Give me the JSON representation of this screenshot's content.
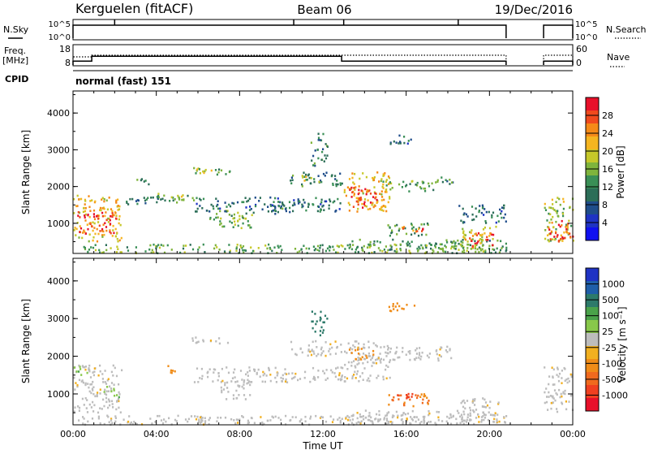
{
  "header": {
    "station": "Kerguelen (fitACF)",
    "beam": "Beam 06",
    "date": "19/Dec/2016"
  },
  "top_panels": {
    "nsky_label": "N.Sky",
    "nsearch_label": "N.Search",
    "freq_label_line1": "Freq.",
    "freq_label_line2": "[MHz]",
    "nave_label": "Nave",
    "cpid_label": "CPID",
    "mode_text": "normal (fast) 151",
    "noise_ticks": [
      "10^5",
      "10^0"
    ],
    "freq_ticks": [
      "18",
      "8"
    ],
    "nave_ticks": [
      "60",
      "0"
    ]
  },
  "colorbars": {
    "power": {
      "label": "Power [dB]",
      "ticks": [
        "28",
        "24",
        "20",
        "16",
        "12",
        "8",
        "4"
      ],
      "colors": [
        "#e8102a",
        "#f04a1e",
        "#f58a18",
        "#f5b520",
        "#c6c82a",
        "#7fb43c",
        "#3a8f56",
        "#2c6e58",
        "#1f4d8a",
        "#1f33c4",
        "#1010f0"
      ]
    },
    "velocity": {
      "label": "Velocity [m s⁻¹]",
      "ticks": [
        "1000",
        "500",
        "100",
        "25",
        "-25",
        "-100",
        "-500",
        "-1000"
      ],
      "colors": [
        "#1f33c4",
        "#1f5ea8",
        "#2d7a6a",
        "#4aa24a",
        "#88c84a",
        "#bdbdbd",
        "#f2b020",
        "#f08c18",
        "#f06a1e",
        "#f04020",
        "#e8102a"
      ]
    }
  },
  "chart_data": {
    "type": "heatmap",
    "xlabel": "Time UT",
    "x_ticks": [
      "00:00",
      "04:00",
      "08:00",
      "12:00",
      "16:00",
      "20:00",
      "00:00"
    ],
    "xlim_hours": [
      0,
      24
    ],
    "ylabel": "Slant Range [km]",
    "y_ticks": [
      "1000",
      "2000",
      "3000",
      "4000"
    ],
    "ylim_km": [
      180,
      4600
    ],
    "data_gap_hours": [
      20.8,
      22.6
    ],
    "noise": {
      "segments": [
        [
          0,
          20.8
        ],
        [
          22.6,
          24
        ]
      ],
      "spikes_hours": [
        2.0,
        10.6,
        13.0,
        18.5
      ]
    },
    "frequency_mhz": [
      {
        "start": 0,
        "end": 0.9,
        "value": 10
      },
      {
        "start": 0.9,
        "end": 12.9,
        "value": 12.5
      },
      {
        "start": 12.9,
        "end": 20.8,
        "value": 10
      },
      {
        "start": 22.6,
        "end": 24,
        "value": 10
      }
    ],
    "nave": [
      {
        "start": 0,
        "end": 0.9,
        "value": 25
      },
      {
        "start": 0.9,
        "end": 20.8,
        "value": 30
      },
      {
        "start": 22.6,
        "end": 24,
        "value": 30
      }
    ],
    "power_patches": [
      {
        "t0": 0,
        "t1": 2.3,
        "r0": 500,
        "r1": 1750,
        "p": 20
      },
      {
        "t0": 0.2,
        "t1": 2.1,
        "r0": 700,
        "r1": 1300,
        "p": 27
      },
      {
        "t0": 2.3,
        "t1": 4.3,
        "r0": 1500,
        "r1": 1750,
        "p": 10
      },
      {
        "t0": 2.8,
        "t1": 3.6,
        "r0": 2050,
        "r1": 2200,
        "p": 12
      },
      {
        "t0": 3.5,
        "t1": 4.3,
        "r0": 1600,
        "r1": 1800,
        "p": 14
      },
      {
        "t0": 4.3,
        "t1": 5.8,
        "r0": 1550,
        "r1": 1780,
        "p": 14
      },
      {
        "t0": 4.6,
        "t1": 5.3,
        "r0": 1620,
        "r1": 1730,
        "p": 18
      },
      {
        "t0": 5.7,
        "t1": 7.5,
        "r0": 2300,
        "r1": 2500,
        "p": 14
      },
      {
        "t0": 5.9,
        "t1": 6.7,
        "r0": 2350,
        "r1": 2470,
        "p": 18
      },
      {
        "t0": 6.5,
        "t1": 7.0,
        "r0": 1100,
        "r1": 1300,
        "p": 14
      },
      {
        "t0": 7.0,
        "t1": 8.6,
        "r0": 850,
        "r1": 1350,
        "p": 14
      },
      {
        "t0": 7.6,
        "t1": 8.3,
        "r0": 950,
        "r1": 1200,
        "p": 20
      },
      {
        "t0": 5.8,
        "t1": 12.9,
        "r0": 1300,
        "r1": 1700,
        "p": 9
      },
      {
        "t0": 8.6,
        "t1": 10.4,
        "r0": 1250,
        "r1": 1500,
        "p": 10
      },
      {
        "t0": 10.4,
        "t1": 12.9,
        "r0": 2000,
        "r1": 2400,
        "p": 10
      },
      {
        "t0": 10.9,
        "t1": 11.8,
        "r0": 2100,
        "r1": 2300,
        "p": 16
      },
      {
        "t0": 11.4,
        "t1": 12.2,
        "r0": 2550,
        "r1": 3200,
        "p": 11
      },
      {
        "t0": 11.7,
        "t1": 12.0,
        "r0": 3200,
        "r1": 3500,
        "p": 10
      },
      {
        "t0": 13.0,
        "t1": 15.2,
        "r0": 1300,
        "r1": 2400,
        "p": 20
      },
      {
        "t0": 13.2,
        "t1": 14.6,
        "r0": 1400,
        "r1": 2000,
        "p": 27
      },
      {
        "t0": 14.8,
        "t1": 17.5,
        "r0": 1850,
        "r1": 2150,
        "p": 14
      },
      {
        "t0": 17.0,
        "t1": 18.3,
        "r0": 2050,
        "r1": 2250,
        "p": 11
      },
      {
        "t0": 15.0,
        "t1": 16.4,
        "r0": 3150,
        "r1": 3400,
        "p": 9
      },
      {
        "t0": 15.0,
        "t1": 17.1,
        "r0": 650,
        "r1": 1000,
        "p": 12
      },
      {
        "t0": 15.6,
        "t1": 16.8,
        "r0": 750,
        "r1": 950,
        "p": 24
      },
      {
        "t0": 13.0,
        "t1": 20.8,
        "r0": 200,
        "r1": 550,
        "p": 12
      },
      {
        "t0": 18.6,
        "t1": 20.4,
        "r0": 300,
        "r1": 900,
        "p": 18
      },
      {
        "t0": 18.9,
        "t1": 19.5,
        "r0": 350,
        "r1": 800,
        "p": 27
      },
      {
        "t0": 19.7,
        "t1": 20.3,
        "r0": 400,
        "r1": 750,
        "p": 27
      },
      {
        "t0": 18.5,
        "t1": 20.8,
        "r0": 1000,
        "r1": 1500,
        "p": 9
      },
      {
        "t0": 22.6,
        "t1": 24,
        "r0": 500,
        "r1": 1700,
        "p": 16
      },
      {
        "t0": 22.8,
        "t1": 24,
        "r0": 450,
        "r1": 1100,
        "p": 27
      },
      {
        "t0": 0,
        "t1": 20.8,
        "r0": 180,
        "r1": 420,
        "p": 14
      }
    ],
    "velocity_patches": [
      {
        "t0": 0,
        "t1": 2.3,
        "r0": 500,
        "r1": 1750,
        "v": 0
      },
      {
        "t0": 0,
        "t1": 0.7,
        "r0": 1500,
        "r1": 1750,
        "v": 60
      },
      {
        "t0": 1.4,
        "t1": 2.2,
        "r0": 900,
        "r1": 1200,
        "v": 60
      },
      {
        "t0": 4.5,
        "t1": 5.2,
        "r0": 1550,
        "r1": 1750,
        "v": -120
      },
      {
        "t0": 5.7,
        "t1": 7.5,
        "r0": 2300,
        "r1": 2500,
        "v": 0
      },
      {
        "t0": 7.0,
        "t1": 8.6,
        "r0": 850,
        "r1": 1350,
        "v": 0
      },
      {
        "t0": 5.8,
        "t1": 12.9,
        "r0": 1300,
        "r1": 1700,
        "v": 0
      },
      {
        "t0": 10.4,
        "t1": 12.9,
        "r0": 2000,
        "r1": 2400,
        "v": 0
      },
      {
        "t0": 11.4,
        "t1": 12.2,
        "r0": 2550,
        "r1": 3200,
        "v": 300
      },
      {
        "t0": 13.0,
        "t1": 15.2,
        "r0": 1300,
        "r1": 2400,
        "v": 0
      },
      {
        "t0": 13.2,
        "t1": 14.4,
        "r0": 1900,
        "r1": 2200,
        "v": -150
      },
      {
        "t0": 14.8,
        "t1": 18.3,
        "r0": 1850,
        "r1": 2250,
        "v": 0
      },
      {
        "t0": 15.0,
        "t1": 17.1,
        "r0": 650,
        "r1": 1000,
        "v": -200
      },
      {
        "t0": 15.4,
        "t1": 16.4,
        "r0": 800,
        "r1": 1000,
        "v": -600
      },
      {
        "t0": 15.0,
        "t1": 16.4,
        "r0": 3150,
        "r1": 3400,
        "v": -120
      },
      {
        "t0": 13.0,
        "t1": 20.8,
        "r0": 200,
        "r1": 550,
        "v": 0
      },
      {
        "t0": 18.6,
        "t1": 20.4,
        "r0": 300,
        "r1": 900,
        "v": 0
      },
      {
        "t0": 22.6,
        "t1": 24,
        "r0": 500,
        "r1": 1700,
        "v": 0
      },
      {
        "t0": 0,
        "t1": 20.8,
        "r0": 180,
        "r1": 420,
        "v": 0
      }
    ]
  }
}
